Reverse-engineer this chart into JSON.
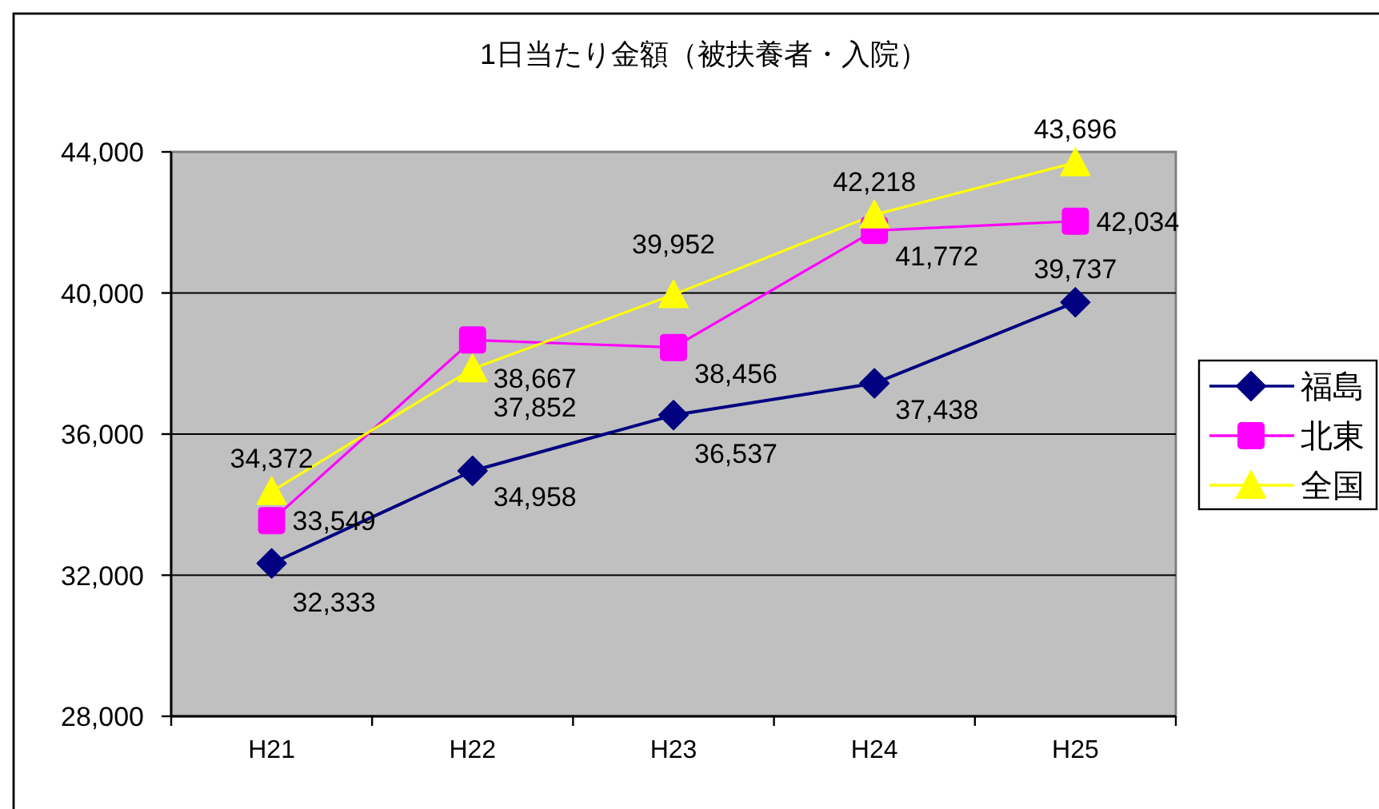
{
  "chart_data": {
    "type": "line",
    "title": "1日当たり金額（被扶養者・入院）",
    "categories": [
      "H21",
      "H22",
      "H23",
      "H24",
      "H25"
    ],
    "series": [
      {
        "name": "福島",
        "color": "#000080",
        "marker": "diamond",
        "values": [
          32333,
          34958,
          36537,
          37438,
          39737
        ],
        "value_labels": [
          "32,333",
          "34,958",
          "36,537",
          "37,438",
          "39,737"
        ]
      },
      {
        "name": "北東",
        "color": "#ff00ff",
        "marker": "square",
        "values": [
          33549,
          38667,
          38456,
          41772,
          42034
        ],
        "value_labels": [
          "33,549",
          "38,667",
          "38,456",
          "41,772",
          "42,034"
        ]
      },
      {
        "name": "全国",
        "color": "#ffff00",
        "marker": "triangle",
        "values": [
          34372,
          37852,
          39952,
          42218,
          43696
        ],
        "value_labels": [
          "34,372",
          "37,852",
          "39,952",
          "42,218",
          "43,696"
        ]
      }
    ],
    "ylim": [
      28000,
      44000
    ],
    "yticks": [
      {
        "value": 28000,
        "label": "28,000"
      },
      {
        "value": 32000,
        "label": "32,000"
      },
      {
        "value": 36000,
        "label": "36,000"
      },
      {
        "value": 40000,
        "label": "40,000"
      },
      {
        "value": 44000,
        "label": "44,000"
      }
    ],
    "grid": "y",
    "legend": "right"
  }
}
